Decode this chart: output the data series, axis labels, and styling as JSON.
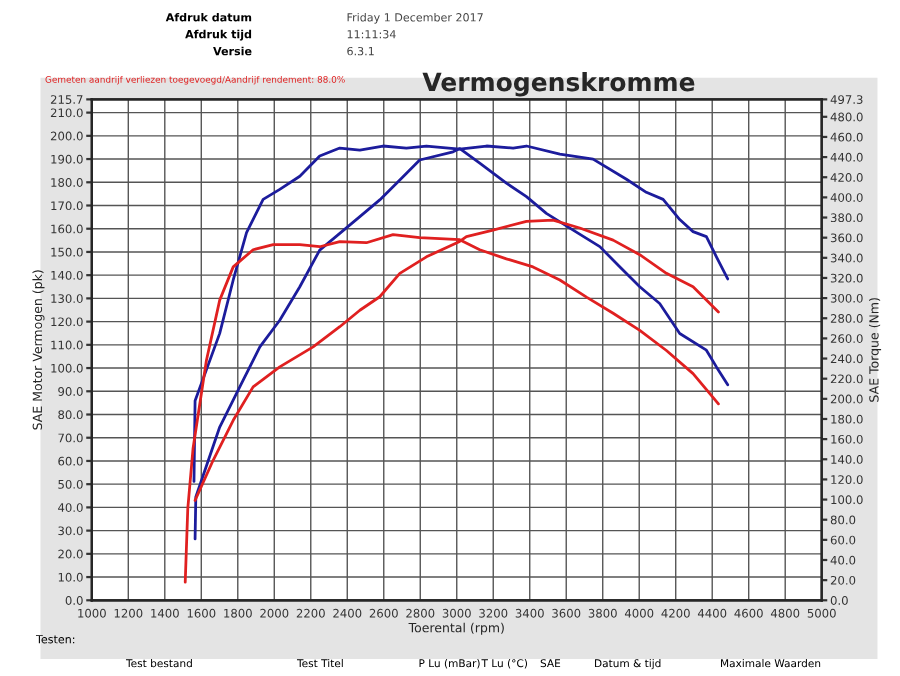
{
  "chart_data": {
    "type": "line",
    "title": "Vermogenskromme",
    "xlabel": "Toerental (rpm)",
    "ylabel": "SAE Motor Vermogen (pk)",
    "y2label": "SAE Torque (Nm)",
    "annotations": [
      "Gemeten aandrijf verliezen toegevoegd/Aandrijf rendement: 88.0%",
      "Afdruk datum",
      "Friday 1 December 2017",
      "Afdruk tijd",
      "11:11:34",
      "Versie",
      "6.3.1",
      "Testen:",
      "Test bestand",
      "Test Titel",
      "P Lu (mBar)",
      "T Lu (°C)",
      "SAE",
      "Datum & tijd",
      "Maximale Waarden"
    ],
    "series": [
      {
        "color": "#1c1c9c",
        "axis": "y2",
        "x": [
          1560,
          1566,
          1701,
          1775,
          1848,
          1939,
          2030,
          2140,
          2249,
          2359,
          2469,
          2596,
          2724,
          2834,
          3016,
          3163,
          3309,
          3382,
          3565,
          3747,
          3930,
          4039,
          4131,
          4222,
          4295,
          4368,
          4423,
          4485
        ],
        "values": [
          118,
          198,
          265,
          318,
          365,
          398,
          408,
          421,
          441,
          449,
          447,
          451,
          449,
          451,
          448,
          451,
          449,
          451,
          443,
          438,
          418,
          405,
          398,
          378,
          366,
          361,
          341,
          319
        ]
      },
      {
        "color": "#1c1c9c",
        "axis": "y",
        "x": [
          1566,
          1570,
          1701,
          1811,
          1921,
          2030,
          2140,
          2249,
          2359,
          2469,
          2578,
          2688,
          2797,
          2980,
          3017,
          3126,
          3272,
          3382,
          3491,
          3638,
          3784,
          3893,
          4003,
          4112,
          4222,
          4368,
          4423,
          4485
        ],
        "values": [
          26.4,
          44.5,
          74.6,
          91.9,
          109.1,
          120.6,
          135.0,
          150.8,
          158.0,
          165.2,
          172.4,
          181.0,
          189.6,
          193.1,
          194.5,
          188.2,
          179.6,
          173.8,
          166.6,
          159.4,
          152.3,
          143.6,
          135.0,
          127.8,
          114.9,
          107.7,
          100.5,
          92.8
        ]
      },
      {
        "color": "#e02020",
        "axis": "y2",
        "x": [
          1512,
          1526,
          1555,
          1628,
          1701,
          1775,
          1884,
          1994,
          2140,
          2249,
          2359,
          2505,
          2651,
          2797,
          3016,
          3126,
          3272,
          3418,
          3565,
          3711,
          3857,
          4003,
          4149,
          4295,
          4434
        ],
        "values": [
          18,
          91,
          151,
          238,
          298,
          331,
          348,
          353,
          353,
          351,
          356,
          355,
          363,
          360,
          358,
          348,
          339,
          331,
          318,
          301,
          285,
          268,
          248,
          225,
          195
        ]
      },
      {
        "color": "#e02020",
        "axis": "y",
        "x": [
          1566,
          1665,
          1775,
          1884,
          2030,
          2213,
          2359,
          2469,
          2578,
          2688,
          2834,
          3016,
          3053,
          3199,
          3382,
          3528,
          3674,
          3857,
          4003,
          4149,
          4295,
          4434
        ],
        "values": [
          43.0,
          60.3,
          77.5,
          91.9,
          100.5,
          109.1,
          117.8,
          124.9,
          130.7,
          140.8,
          147.9,
          154.5,
          156.6,
          159.4,
          163.2,
          163.7,
          160.3,
          155.1,
          148.8,
          140.8,
          135.0,
          124.1
        ]
      }
    ],
    "xlim": [
      1000,
      5000
    ],
    "xticks": [
      1000,
      1200,
      1400,
      1600,
      1800,
      2000,
      2200,
      2400,
      2600,
      2800,
      3000,
      3200,
      3400,
      3600,
      3800,
      4000,
      4200,
      4400,
      4600,
      4800,
      5000
    ],
    "ylim": [
      0,
      215.7
    ],
    "yticks": [
      {
        "value": 0,
        "label": "0.0"
      },
      {
        "value": 10,
        "label": "10.0"
      },
      {
        "value": 20,
        "label": "20.0"
      },
      {
        "value": 30,
        "label": "30.0"
      },
      {
        "value": 40,
        "label": "40.0"
      },
      {
        "value": 50,
        "label": "50.0"
      },
      {
        "value": 60,
        "label": "60.0"
      },
      {
        "value": 70,
        "label": "70.0"
      },
      {
        "value": 80,
        "label": "80.0"
      },
      {
        "value": 90,
        "label": "90.0"
      },
      {
        "value": 100,
        "label": "100.0"
      },
      {
        "value": 110,
        "label": "110.0"
      },
      {
        "value": 120,
        "label": "120.0"
      },
      {
        "value": 130,
        "label": "130.0"
      },
      {
        "value": 140,
        "label": "140.0"
      },
      {
        "value": 150,
        "label": "150.0"
      },
      {
        "value": 160,
        "label": "160.0"
      },
      {
        "value": 170,
        "label": "170.0"
      },
      {
        "value": 180,
        "label": "180.0"
      },
      {
        "value": 190,
        "label": "190.0"
      },
      {
        "value": 200,
        "label": "200.0"
      },
      {
        "value": 210,
        "label": "210.0"
      },
      {
        "value": 215.7,
        "label": "215.7"
      }
    ],
    "y2lim": [
      0,
      497.3
    ],
    "y2ticks": [
      {
        "value": 0,
        "label": "0.0"
      },
      {
        "value": 20,
        "label": "20.0"
      },
      {
        "value": 40,
        "label": "40.0"
      },
      {
        "value": 60,
        "label": "60.0"
      },
      {
        "value": 80,
        "label": "80.0"
      },
      {
        "value": 100,
        "label": "100.0"
      },
      {
        "value": 120,
        "label": "120.0"
      },
      {
        "value": 140,
        "label": "140.0"
      },
      {
        "value": 160,
        "label": "160.0"
      },
      {
        "value": 180,
        "label": "180.0"
      },
      {
        "value": 200,
        "label": "200.0"
      },
      {
        "value": 220,
        "label": "220.0"
      },
      {
        "value": 240,
        "label": "240.0"
      },
      {
        "value": 260,
        "label": "260.0"
      },
      {
        "value": 280,
        "label": "280.0"
      },
      {
        "value": 300,
        "label": "300.0"
      },
      {
        "value": 320,
        "label": "320.0"
      },
      {
        "value": 340,
        "label": "340.0"
      },
      {
        "value": 360,
        "label": "360.0"
      },
      {
        "value": 380,
        "label": "380.0"
      },
      {
        "value": 400,
        "label": "400.0"
      },
      {
        "value": 420,
        "label": "420.0"
      },
      {
        "value": 440,
        "label": "440.0"
      },
      {
        "value": 460,
        "label": "460.0"
      },
      {
        "value": 480,
        "label": "480.0"
      },
      {
        "value": 497.3,
        "label": "497.3"
      }
    ],
    "grid": true,
    "legend": false,
    "marker": "none",
    "line_style": "solid"
  }
}
